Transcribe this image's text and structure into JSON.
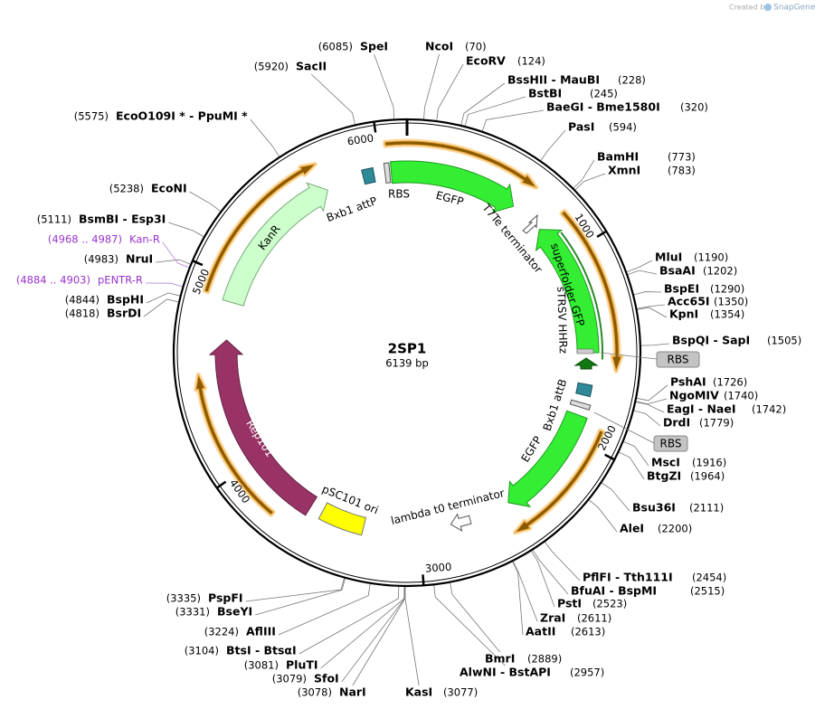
{
  "watermark": {
    "prefix": "Created by",
    "brand": "SnapGene"
  },
  "title": "2SP1",
  "length": "6139 bp",
  "ticks": [
    "1000",
    "2000",
    "3000",
    "4000",
    "5000",
    "6000"
  ],
  "enzymes": [
    {
      "name": "SpeI",
      "position": "(6085)"
    },
    {
      "name": "NcoI",
      "position": "(70)"
    },
    {
      "name": "EcoRV",
      "position": "(124)"
    },
    {
      "name": "BssHII  - MauBI",
      "position": "(228)"
    },
    {
      "name": "BstBI",
      "position": "(245)"
    },
    {
      "name": "BaeGI  - Bme1580I",
      "position": "(320)"
    },
    {
      "name": "PasI",
      "position": "(594)"
    },
    {
      "name": "BamHI",
      "position": "(773)"
    },
    {
      "name": "XmnI",
      "position": "(783)"
    },
    {
      "name": "MluI",
      "position": "(1190)"
    },
    {
      "name": "BsaAI",
      "position": "(1202)"
    },
    {
      "name": "BspEI",
      "position": "(1290)"
    },
    {
      "name": "Acc65I",
      "position": "(1350)"
    },
    {
      "name": "KpnI",
      "position": "(1354)"
    },
    {
      "name": "BspQI  - SapI",
      "position": "(1505)"
    },
    {
      "name": "PshAI",
      "position": "(1726)"
    },
    {
      "name": "NgoMIV",
      "position": "(1740)"
    },
    {
      "name": "EagI  - NaeI",
      "position": "(1742)"
    },
    {
      "name": "DrdI",
      "position": "(1779)"
    },
    {
      "name": "MscI",
      "position": "(1916)"
    },
    {
      "name": "BtgZI",
      "position": "(1964)"
    },
    {
      "name": "Bsu36I",
      "position": "(2111)"
    },
    {
      "name": "AleI",
      "position": "(2200)"
    },
    {
      "name": "PflFI  - Tth111I",
      "position": "(2454)"
    },
    {
      "name": "BfuAI  - BspMI",
      "position": "(2515)"
    },
    {
      "name": "PstI",
      "position": "(2523)"
    },
    {
      "name": "ZraI",
      "position": "(2611)"
    },
    {
      "name": "AatII",
      "position": "(2613)"
    },
    {
      "name": "BmrI",
      "position": "(2889)"
    },
    {
      "name": "AlwNI  - BstAPI",
      "position": "(2957)"
    },
    {
      "name": "KasI",
      "position": "(3077)"
    },
    {
      "name": "NarI",
      "position": "(3078)"
    },
    {
      "name": "SfoI",
      "position": "(3079)"
    },
    {
      "name": "PluTI",
      "position": "(3081)"
    },
    {
      "name": "BtsI  - BtsαI",
      "position": "(3104)"
    },
    {
      "name": "AflIII",
      "position": "(3224)"
    },
    {
      "name": "BseYI",
      "position": "(3331)"
    },
    {
      "name": "PspFI",
      "position": "(3335)"
    },
    {
      "name": "BsrDI",
      "position": "(4818)"
    },
    {
      "name": "BspHI",
      "position": "(4844)"
    },
    {
      "name": "NruI",
      "position": "(4983)"
    },
    {
      "name": "BsmBI  - Esp3I",
      "position": "(5111)"
    },
    {
      "name": "EcoNI",
      "position": "(5238)"
    },
    {
      "name": "EcoO109I *  - PpuMI *",
      "position": "(5575)"
    },
    {
      "name": "SacII",
      "position": "(5920)"
    }
  ],
  "primers": [
    {
      "name": "Kan-R",
      "position": "(4968 .. 4987)"
    },
    {
      "name": "pENTR-R",
      "position": "(4884 .. 4903)"
    }
  ],
  "features": [
    "Bxb1 attP",
    "RBS",
    "EGFP",
    "T7Te terminator",
    "superfolder GFP",
    "sTRSV HHRz",
    "RBS",
    "Bxb1 attB",
    "RBS",
    "EGFP",
    "lambda t0 terminator",
    "pSC101 ori",
    "Rep101",
    "KanR"
  ]
}
